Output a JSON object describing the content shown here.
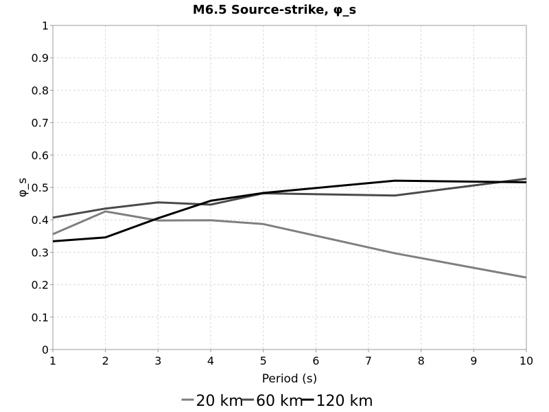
{
  "chart_data": {
    "type": "line",
    "title": "M6.5 Source-strike, φ_s",
    "xlabel": "Period (s)",
    "ylabel": "φ_s",
    "xlim": [
      1,
      10
    ],
    "ylim": [
      0,
      1
    ],
    "xticks": [
      "1",
      "2",
      "3",
      "4",
      "5",
      "6",
      "7",
      "8",
      "9",
      "10"
    ],
    "yticks": [
      "0",
      "0.1",
      "0.2",
      "0.3",
      "0.4",
      "0.5",
      "0.6",
      "0.7",
      "0.8",
      "0.9",
      "1"
    ],
    "grid": true,
    "legend_position": "bottom",
    "series": [
      {
        "name": "20 km",
        "color": "#7f7f7f",
        "x": [
          1,
          2,
          3,
          4,
          5,
          7.5,
          10
        ],
        "y": [
          0.356,
          0.426,
          0.398,
          0.399,
          0.387,
          0.297,
          0.222
        ]
      },
      {
        "name": "60 km",
        "color": "#4a4a4a",
        "x": [
          1,
          2,
          3,
          4,
          5,
          7.5,
          10
        ],
        "y": [
          0.407,
          0.435,
          0.454,
          0.447,
          0.482,
          0.475,
          0.527
        ]
      },
      {
        "name": "120 km",
        "color": "#000000",
        "x": [
          1,
          2,
          3,
          4,
          5,
          7.5,
          10
        ],
        "y": [
          0.334,
          0.346,
          0.405,
          0.459,
          0.483,
          0.521,
          0.516
        ]
      }
    ]
  }
}
